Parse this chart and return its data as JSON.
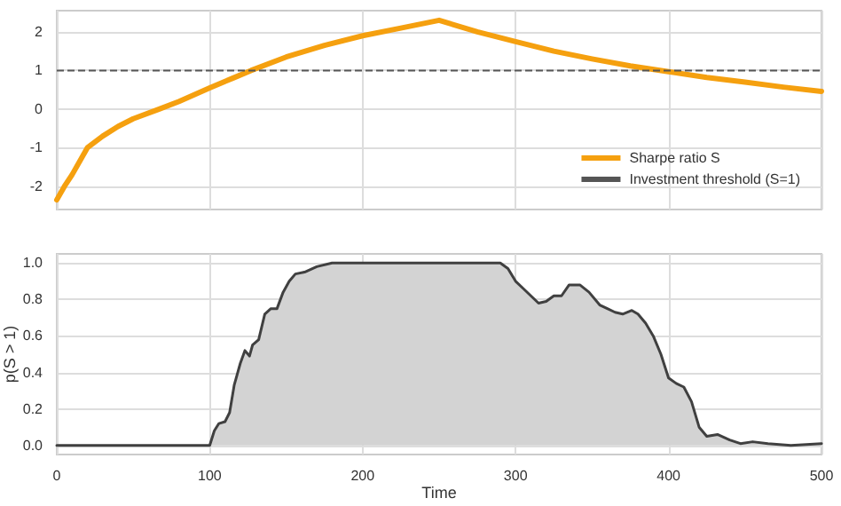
{
  "chart_data": [
    {
      "type": "line",
      "xlim": [
        0,
        500
      ],
      "xticks": [
        0,
        100,
        200,
        300,
        400,
        500
      ],
      "ylim": [
        -2.6,
        2.55
      ],
      "yticks": [
        -2,
        -1,
        0,
        1,
        2
      ],
      "tick_labels": "y",
      "grid": true,
      "legend": "bottom right",
      "series": [
        {
          "name": "Sharpe ratio S",
          "color": "#f5a00f",
          "x": [
            0,
            5,
            10,
            20,
            30,
            40,
            50,
            67,
            80,
            100,
            115,
            127,
            150,
            175,
            200,
            225,
            250,
            275,
            300,
            325,
            350,
            375,
            400,
            425,
            450,
            475,
            500
          ],
          "values": [
            -2.35,
            -2.0,
            -1.7,
            -1.0,
            -0.7,
            -0.45,
            -0.25,
            0,
            0.2,
            0.55,
            0.8,
            1.0,
            1.35,
            1.65,
            1.9,
            2.1,
            2.3,
            2.0,
            1.75,
            1.5,
            1.3,
            1.12,
            0.97,
            0.82,
            0.7,
            0.57,
            0.46
          ]
        }
      ],
      "ref_lines": [
        {
          "axis": "y",
          "value": 1,
          "label": "Investment threshold (S=1)",
          "color": "#555555",
          "line_style": "dashed"
        }
      ]
    },
    {
      "type": "area",
      "xlabel": "Time",
      "ylabel": "p(S > 1)",
      "xlim": [
        0,
        500
      ],
      "xticks": [
        0,
        100,
        200,
        300,
        400,
        500
      ],
      "ylim": [
        -0.05,
        1.05
      ],
      "yticks": [
        {
          "value": 0,
          "label": "0.0"
        },
        0.2,
        0.4,
        0.6,
        0.8,
        {
          "value": 1,
          "label": "1.0"
        }
      ],
      "grid": true,
      "series": [
        {
          "color": "#404040",
          "x": [
            0,
            98,
            100,
            103,
            106,
            110,
            113,
            116,
            120,
            123,
            126,
            128,
            132,
            136,
            140,
            144,
            148,
            152,
            156,
            162,
            170,
            180,
            290,
            295,
            300,
            305,
            310,
            315,
            320,
            325,
            330,
            335,
            342,
            348,
            355,
            360,
            365,
            370,
            376,
            380,
            385,
            390,
            395,
            400,
            405,
            410,
            415,
            420,
            425,
            432,
            440,
            447,
            455,
            465,
            480,
            500
          ],
          "values": [
            0.0,
            0.0,
            0.0,
            0.08,
            0.12,
            0.13,
            0.18,
            0.33,
            0.45,
            0.52,
            0.49,
            0.55,
            0.58,
            0.72,
            0.75,
            0.75,
            0.84,
            0.9,
            0.94,
            0.95,
            0.98,
            1.0,
            1.0,
            0.97,
            0.9,
            0.86,
            0.82,
            0.78,
            0.79,
            0.82,
            0.82,
            0.88,
            0.88,
            0.84,
            0.77,
            0.75,
            0.73,
            0.72,
            0.74,
            0.72,
            0.67,
            0.6,
            0.5,
            0.37,
            0.34,
            0.32,
            0.24,
            0.1,
            0.05,
            0.06,
            0.03,
            0.01,
            0.02,
            0.01,
            0.0,
            0.01
          ]
        }
      ]
    }
  ]
}
